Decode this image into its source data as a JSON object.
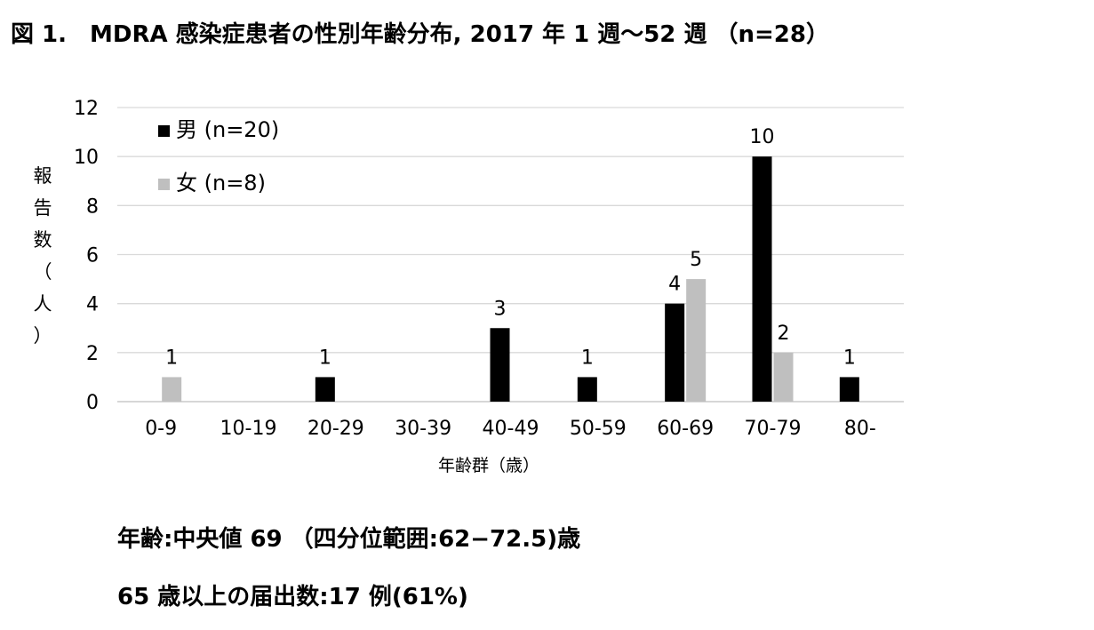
{
  "title": "図 1.　MDRA 感染症患者の性別年齢分布, 2017 年 1 週〜52 週 （n=28）",
  "notes": {
    "line1": "年齢:中央値 69 （四分位範囲:62−72.5)歳",
    "line2": "65 歳以上の届出数:17 例(61%)"
  },
  "chart_data": {
    "type": "bar",
    "title": "",
    "xlabel": "年齢群（歳）",
    "ylabel": "報告数（人）",
    "ylabel_chars": [
      "報",
      "告",
      "数",
      "（",
      "人",
      "）"
    ],
    "ylim": [
      0,
      12
    ],
    "yticks": [
      "0",
      "2",
      "4",
      "6",
      "8",
      "10",
      "12"
    ],
    "grid": true,
    "legend_position": "top-left",
    "categories": [
      "0-9",
      "10-19",
      "20-29",
      "30-39",
      "40-49",
      "50-59",
      "60-69",
      "70-79",
      "80-"
    ],
    "series": [
      {
        "name": "男 (n=20)",
        "color": "#000000",
        "values": [
          0,
          0,
          1,
          0,
          3,
          1,
          4,
          10,
          1
        ]
      },
      {
        "name": "女 (n=8)",
        "color": "#bfbfbf",
        "values": [
          1,
          0,
          0,
          0,
          0,
          0,
          5,
          2,
          0
        ]
      }
    ]
  }
}
